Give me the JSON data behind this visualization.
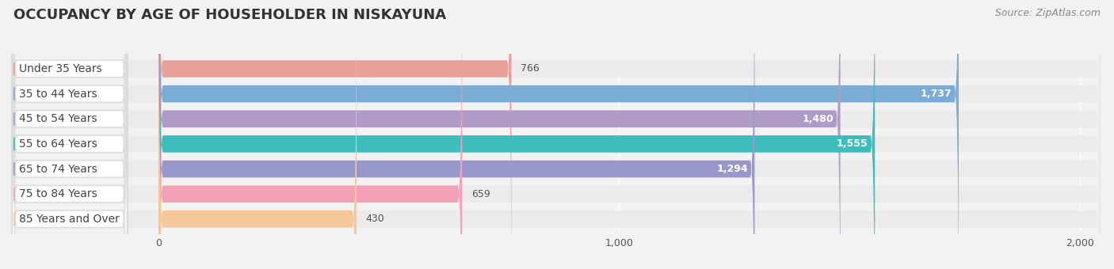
{
  "title": "OCCUPANCY BY AGE OF HOUSEHOLDER IN NISKAYUNA",
  "source": "Source: ZipAtlas.com",
  "categories": [
    "Under 35 Years",
    "35 to 44 Years",
    "45 to 54 Years",
    "55 to 64 Years",
    "65 to 74 Years",
    "75 to 84 Years",
    "85 Years and Over"
  ],
  "values": [
    766,
    1737,
    1480,
    1555,
    1294,
    659,
    430
  ],
  "bar_colors": [
    "#e8a09a",
    "#7aacd6",
    "#b09bc8",
    "#3dbdbe",
    "#9898cc",
    "#f4a0b8",
    "#f5c89a"
  ],
  "bar_bg_colors": [
    "#ebebeb",
    "#ebebeb",
    "#ebebeb",
    "#ebebeb",
    "#ebebeb",
    "#ebebeb",
    "#ebebeb"
  ],
  "dot_colors": [
    "#e8a09a",
    "#7aacd6",
    "#b09bc8",
    "#3dbdbe",
    "#9898cc",
    "#f4a0b8",
    "#f5c89a"
  ],
  "xlim_left": -320,
  "xlim_right": 2050,
  "xticks": [
    0,
    1000,
    2000
  ],
  "title_fontsize": 13,
  "source_fontsize": 9,
  "label_fontsize": 10,
  "value_fontsize": 9,
  "background_color": "#f2f2f2"
}
